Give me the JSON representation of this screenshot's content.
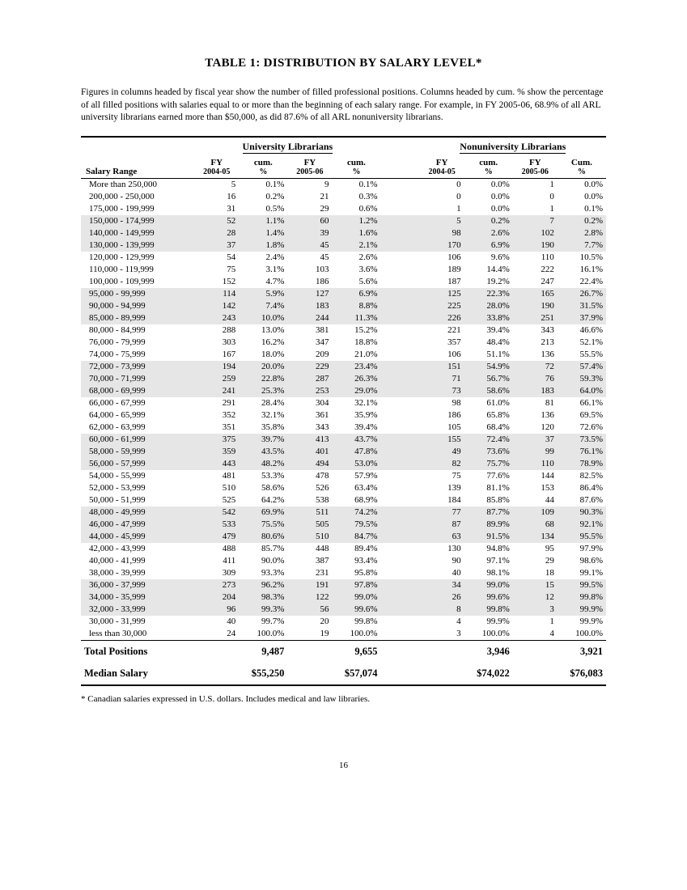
{
  "title": "TABLE 1:  DISTRIBUTION BY SALARY LEVEL*",
  "caption": "Figures in columns headed by fiscal year show the number of filled professional positions.  Columns headed by cum. % show the percentage of all filled positions with salaries equal to or more than the beginning of each salary range.  For example, in FY 2005-06, 68.9% of all ARL university librarians earned more than $50,000, as did 87.6% of all ARL nonuniversity librarians.",
  "groupHeaders": {
    "univ": "University Librarians",
    "nonuniv": "Nonuniversity Librarians"
  },
  "colHeaders": {
    "range": "Salary Range",
    "fy1_top": "FY",
    "fy1_sub": "2004-05",
    "cum1_top": "cum.",
    "cum1_sub": "%",
    "fy2_top": "FY",
    "fy2_sub": "2005-06",
    "cum2_top": "cum.",
    "cum2_sub": "%",
    "nfy1_top": "FY",
    "nfy1_sub": "2004-05",
    "ncum1_top": "cum.",
    "ncum1_sub": "%",
    "nfy2_top": "FY",
    "nfy2_sub": "2005-06",
    "ncum2_top": "Cum.",
    "ncum2_sub": "%"
  },
  "rows": [
    {
      "range": "More than 250,000",
      "u1": "5",
      "uc1": "0.1%",
      "u2": "9",
      "uc2": "0.1%",
      "n1": "0",
      "nc1": "0.0%",
      "n2": "1",
      "nc2": "0.0%",
      "shaded": false
    },
    {
      "range": "200,000 - 250,000",
      "u1": "16",
      "uc1": "0.2%",
      "u2": "21",
      "uc2": "0.3%",
      "n1": "0",
      "nc1": "0.0%",
      "n2": "0",
      "nc2": "0.0%",
      "shaded": false
    },
    {
      "range": "175,000 - 199,999",
      "u1": "31",
      "uc1": "0.5%",
      "u2": "29",
      "uc2": "0.6%",
      "n1": "1",
      "nc1": "0.0%",
      "n2": "1",
      "nc2": "0.1%",
      "shaded": false
    },
    {
      "range": "150,000 - 174,999",
      "u1": "52",
      "uc1": "1.1%",
      "u2": "60",
      "uc2": "1.2%",
      "n1": "5",
      "nc1": "0.2%",
      "n2": "7",
      "nc2": "0.2%",
      "shaded": true
    },
    {
      "range": "140,000 - 149,999",
      "u1": "28",
      "uc1": "1.4%",
      "u2": "39",
      "uc2": "1.6%",
      "n1": "98",
      "nc1": "2.6%",
      "n2": "102",
      "nc2": "2.8%",
      "shaded": true
    },
    {
      "range": "130,000 - 139,999",
      "u1": "37",
      "uc1": "1.8%",
      "u2": "45",
      "uc2": "2.1%",
      "n1": "170",
      "nc1": "6.9%",
      "n2": "190",
      "nc2": "7.7%",
      "shaded": true
    },
    {
      "range": "120,000 - 129,999",
      "u1": "54",
      "uc1": "2.4%",
      "u2": "45",
      "uc2": "2.6%",
      "n1": "106",
      "nc1": "9.6%",
      "n2": "110",
      "nc2": "10.5%",
      "shaded": false
    },
    {
      "range": "110,000 - 119,999",
      "u1": "75",
      "uc1": "3.1%",
      "u2": "103",
      "uc2": "3.6%",
      "n1": "189",
      "nc1": "14.4%",
      "n2": "222",
      "nc2": "16.1%",
      "shaded": false
    },
    {
      "range": "100,000 - 109,999",
      "u1": "152",
      "uc1": "4.7%",
      "u2": "186",
      "uc2": "5.6%",
      "n1": "187",
      "nc1": "19.2%",
      "n2": "247",
      "nc2": "22.4%",
      "shaded": false
    },
    {
      "range": "95,000 -  99,999",
      "u1": "114",
      "uc1": "5.9%",
      "u2": "127",
      "uc2": "6.9%",
      "n1": "125",
      "nc1": "22.3%",
      "n2": "165",
      "nc2": "26.7%",
      "shaded": true
    },
    {
      "range": "90,000 -  94,999",
      "u1": "142",
      "uc1": "7.4%",
      "u2": "183",
      "uc2": "8.8%",
      "n1": "225",
      "nc1": "28.0%",
      "n2": "190",
      "nc2": "31.5%",
      "shaded": true
    },
    {
      "range": "85,000 -  89,999",
      "u1": "243",
      "uc1": "10.0%",
      "u2": "244",
      "uc2": "11.3%",
      "n1": "226",
      "nc1": "33.8%",
      "n2": "251",
      "nc2": "37.9%",
      "shaded": true
    },
    {
      "range": "80,000 -  84,999",
      "u1": "288",
      "uc1": "13.0%",
      "u2": "381",
      "uc2": "15.2%",
      "n1": "221",
      "nc1": "39.4%",
      "n2": "343",
      "nc2": "46.6%",
      "shaded": false
    },
    {
      "range": "76,000 -  79,999",
      "u1": "303",
      "uc1": "16.2%",
      "u2": "347",
      "uc2": "18.8%",
      "n1": "357",
      "nc1": "48.4%",
      "n2": "213",
      "nc2": "52.1%",
      "shaded": false
    },
    {
      "range": "74,000 -  75,999",
      "u1": "167",
      "uc1": "18.0%",
      "u2": "209",
      "uc2": "21.0%",
      "n1": "106",
      "nc1": "51.1%",
      "n2": "136",
      "nc2": "55.5%",
      "shaded": false
    },
    {
      "range": "72,000 -  73,999",
      "u1": "194",
      "uc1": "20.0%",
      "u2": "229",
      "uc2": "23.4%",
      "n1": "151",
      "nc1": "54.9%",
      "n2": "72",
      "nc2": "57.4%",
      "shaded": true
    },
    {
      "range": "70,000 -  71,999",
      "u1": "259",
      "uc1": "22.8%",
      "u2": "287",
      "uc2": "26.3%",
      "n1": "71",
      "nc1": "56.7%",
      "n2": "76",
      "nc2": "59.3%",
      "shaded": true
    },
    {
      "range": "68,000 -  69,999",
      "u1": "241",
      "uc1": "25.3%",
      "u2": "253",
      "uc2": "29.0%",
      "n1": "73",
      "nc1": "58.6%",
      "n2": "183",
      "nc2": "64.0%",
      "shaded": true
    },
    {
      "range": "66,000 -  67,999",
      "u1": "291",
      "uc1": "28.4%",
      "u2": "304",
      "uc2": "32.1%",
      "n1": "98",
      "nc1": "61.0%",
      "n2": "81",
      "nc2": "66.1%",
      "shaded": false
    },
    {
      "range": "64,000 -  65,999",
      "u1": "352",
      "uc1": "32.1%",
      "u2": "361",
      "uc2": "35.9%",
      "n1": "186",
      "nc1": "65.8%",
      "n2": "136",
      "nc2": "69.5%",
      "shaded": false
    },
    {
      "range": "62,000 -  63,999",
      "u1": "351",
      "uc1": "35.8%",
      "u2": "343",
      "uc2": "39.4%",
      "n1": "105",
      "nc1": "68.4%",
      "n2": "120",
      "nc2": "72.6%",
      "shaded": false
    },
    {
      "range": "60,000 -  61,999",
      "u1": "375",
      "uc1": "39.7%",
      "u2": "413",
      "uc2": "43.7%",
      "n1": "155",
      "nc1": "72.4%",
      "n2": "37",
      "nc2": "73.5%",
      "shaded": true
    },
    {
      "range": "58,000 -  59,999",
      "u1": "359",
      "uc1": "43.5%",
      "u2": "401",
      "uc2": "47.8%",
      "n1": "49",
      "nc1": "73.6%",
      "n2": "99",
      "nc2": "76.1%",
      "shaded": true
    },
    {
      "range": "56,000 -  57,999",
      "u1": "443",
      "uc1": "48.2%",
      "u2": "494",
      "uc2": "53.0%",
      "n1": "82",
      "nc1": "75.7%",
      "n2": "110",
      "nc2": "78.9%",
      "shaded": true
    },
    {
      "range": "54,000 -  55,999",
      "u1": "481",
      "uc1": "53.3%",
      "u2": "478",
      "uc2": "57.9%",
      "n1": "75",
      "nc1": "77.6%",
      "n2": "144",
      "nc2": "82.5%",
      "shaded": false
    },
    {
      "range": "52,000 -  53,999",
      "u1": "510",
      "uc1": "58.6%",
      "u2": "526",
      "uc2": "63.4%",
      "n1": "139",
      "nc1": "81.1%",
      "n2": "153",
      "nc2": "86.4%",
      "shaded": false
    },
    {
      "range": "50,000 -  51,999",
      "u1": "525",
      "uc1": "64.2%",
      "u2": "538",
      "uc2": "68.9%",
      "n1": "184",
      "nc1": "85.8%",
      "n2": "44",
      "nc2": "87.6%",
      "shaded": false
    },
    {
      "range": "48,000 -  49,999",
      "u1": "542",
      "uc1": "69.9%",
      "u2": "511",
      "uc2": "74.2%",
      "n1": "77",
      "nc1": "87.7%",
      "n2": "109",
      "nc2": "90.3%",
      "shaded": true
    },
    {
      "range": "46,000 -  47,999",
      "u1": "533",
      "uc1": "75.5%",
      "u2": "505",
      "uc2": "79.5%",
      "n1": "87",
      "nc1": "89.9%",
      "n2": "68",
      "nc2": "92.1%",
      "shaded": true
    },
    {
      "range": "44,000 -  45,999",
      "u1": "479",
      "uc1": "80.6%",
      "u2": "510",
      "uc2": "84.7%",
      "n1": "63",
      "nc1": "91.5%",
      "n2": "134",
      "nc2": "95.5%",
      "shaded": true
    },
    {
      "range": "42,000 -  43,999",
      "u1": "488",
      "uc1": "85.7%",
      "u2": "448",
      "uc2": "89.4%",
      "n1": "130",
      "nc1": "94.8%",
      "n2": "95",
      "nc2": "97.9%",
      "shaded": false
    },
    {
      "range": "40,000 -  41,999",
      "u1": "411",
      "uc1": "90.0%",
      "u2": "387",
      "uc2": "93.4%",
      "n1": "90",
      "nc1": "97.1%",
      "n2": "29",
      "nc2": "98.6%",
      "shaded": false
    },
    {
      "range": "38,000 -  39,999",
      "u1": "309",
      "uc1": "93.3%",
      "u2": "231",
      "uc2": "95.8%",
      "n1": "40",
      "nc1": "98.1%",
      "n2": "18",
      "nc2": "99.1%",
      "shaded": false
    },
    {
      "range": "36,000 -  37,999",
      "u1": "273",
      "uc1": "96.2%",
      "u2": "191",
      "uc2": "97.8%",
      "n1": "34",
      "nc1": "99.0%",
      "n2": "15",
      "nc2": "99.5%",
      "shaded": true
    },
    {
      "range": "34,000 -  35,999",
      "u1": "204",
      "uc1": "98.3%",
      "u2": "122",
      "uc2": "99.0%",
      "n1": "26",
      "nc1": "99.6%",
      "n2": "12",
      "nc2": "99.8%",
      "shaded": true
    },
    {
      "range": "32,000 -  33,999",
      "u1": "96",
      "uc1": "99.3%",
      "u2": "56",
      "uc2": "99.6%",
      "n1": "8",
      "nc1": "99.8%",
      "n2": "3",
      "nc2": "99.9%",
      "shaded": true
    },
    {
      "range": "30,000 -  31,999",
      "u1": "40",
      "uc1": "99.7%",
      "u2": "20",
      "uc2": "99.8%",
      "n1": "4",
      "nc1": "99.9%",
      "n2": "1",
      "nc2": "99.9%",
      "shaded": false
    },
    {
      "range": "less than 30,000",
      "u1": "24",
      "uc1": "100.0%",
      "u2": "19",
      "uc2": "100.0%",
      "n1": "3",
      "nc1": "100.0%",
      "n2": "4",
      "nc2": "100.0%",
      "shaded": false
    }
  ],
  "totals": {
    "label": "Total Positions",
    "u1": "9,487",
    "u2": "9,655",
    "n1": "3,946",
    "n2": "3,921"
  },
  "median": {
    "label": "Median Salary",
    "u1": "$55,250",
    "u2": "$57,074",
    "n1": "$74,022",
    "n2": "$76,083"
  },
  "footnote": "* Canadian salaries expressed in U.S. dollars. Includes medical and law libraries.",
  "pageNumber": "16"
}
